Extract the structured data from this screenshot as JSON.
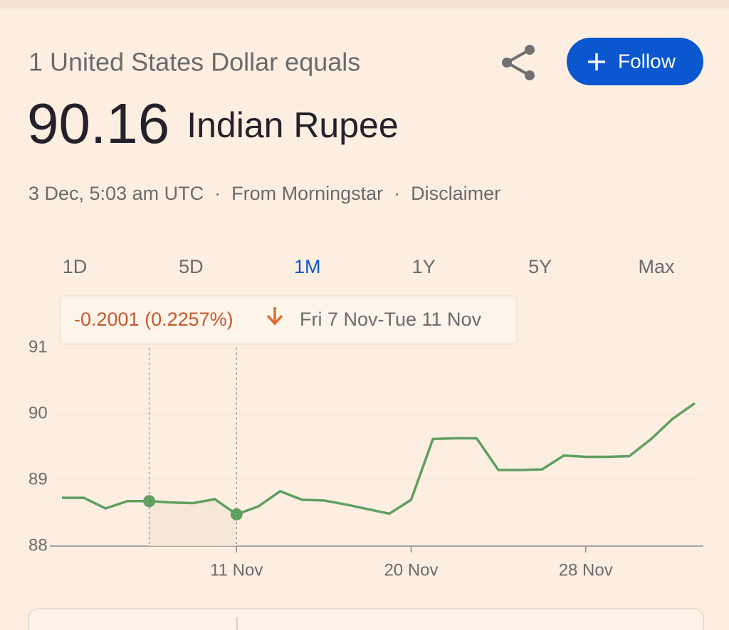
{
  "header": {
    "prefix": "1 United States Dollar equals",
    "value": "90.16",
    "currency": "Indian Rupee",
    "timestamp": "3 Dec, 5:03 am UTC",
    "source": "From Morningstar",
    "disclaimer": "Disclaimer"
  },
  "follow_button": "Follow",
  "tabs": [
    "1D",
    "5D",
    "1M",
    "1Y",
    "5Y",
    "Max"
  ],
  "selected_tab": 2,
  "tooltip": {
    "change": "-0.2001 (0.2257%)",
    "range": "Fri 7 Nov-Tue 11 Nov",
    "highlight": [
      4,
      8
    ]
  },
  "chart_data": {
    "type": "line",
    "categories": [
      null,
      null,
      null,
      null,
      null,
      null,
      null,
      null,
      "11 Nov",
      null,
      null,
      null,
      null,
      null,
      null,
      null,
      "20 Nov",
      null,
      null,
      null,
      null,
      null,
      null,
      null,
      "28 Nov",
      null,
      null,
      null,
      null,
      null
    ],
    "values": [
      88.73,
      88.73,
      88.57,
      88.68,
      88.68,
      88.66,
      88.65,
      88.71,
      88.48,
      88.6,
      88.83,
      88.7,
      88.69,
      88.63,
      88.56,
      88.49,
      88.7,
      89.62,
      89.63,
      89.63,
      89.15,
      89.15,
      89.16,
      89.37,
      89.35,
      89.35,
      89.36,
      89.62,
      89.93,
      90.16
    ],
    "color": "#5f9f62",
    "ylim": [
      88,
      91
    ],
    "yticks": [
      88,
      89,
      90,
      91
    ],
    "grid": true
  }
}
